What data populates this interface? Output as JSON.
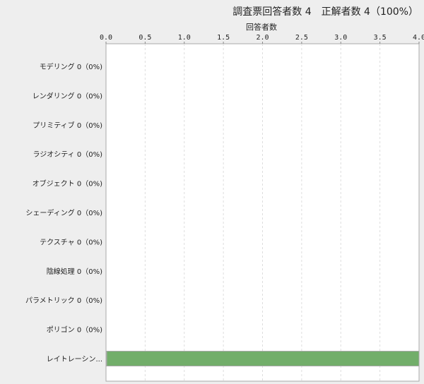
{
  "chart_data": {
    "type": "bar",
    "orientation": "horizontal",
    "title": "調査票回答者数 4　正解者数 4（100%）",
    "xlabel": "回答者数",
    "xlim": [
      0,
      4
    ],
    "xticks": [
      "0.0",
      "0.5",
      "1.0",
      "1.5",
      "2.0",
      "2.5",
      "3.0",
      "3.5",
      "4.0"
    ],
    "grid": true,
    "categories": [
      "モデリング 0（0%)",
      "レンダリング 0（0%)",
      "プリミティブ 0（0%)",
      "ラジオシティ 0（0%)",
      "オブジェクト 0（0%)",
      "シェーディング 0（0%)",
      "テクスチャ 0（0%)",
      "陰線処理 0（0%)",
      "パラメトリック 0（0%)",
      "ポリゴン 0（0%)",
      "レイトレーシン..."
    ],
    "values": [
      0,
      0,
      0,
      0,
      0,
      0,
      0,
      0,
      0,
      0,
      4
    ],
    "bar_color": "#72ae6a"
  }
}
